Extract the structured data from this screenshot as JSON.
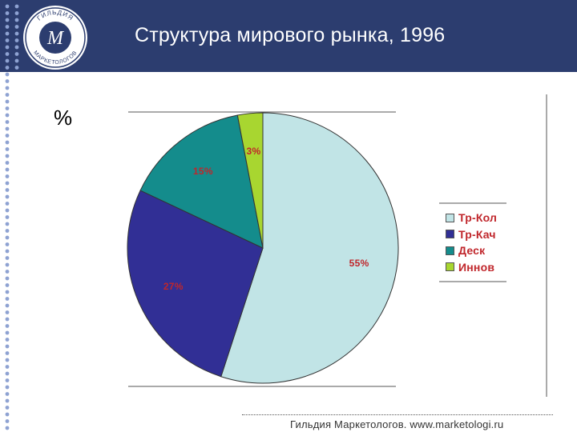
{
  "header": {
    "title": "Структура мирового рынка, 1996",
    "logo_top_text": "ГИЛЬДИЯ",
    "logo_bottom_text": "МАРКЕТОЛОГОВ",
    "logo_monogram": "M",
    "band_color": "#2c3d6f"
  },
  "unit_label": "%",
  "footer": {
    "text": "Гильдия Маркетологов. www.marketologi.ru"
  },
  "chart_data": {
    "type": "pie",
    "title": "",
    "slices": [
      {
        "name": "Тр-Кол",
        "value": 55,
        "label": "55%",
        "color": "#c1e4e6"
      },
      {
        "name": "Тр-Кач",
        "value": 27,
        "label": "27%",
        "color": "#312f95"
      },
      {
        "name": "Деск",
        "value": 15,
        "label": "15%",
        "color": "#148c8c"
      },
      {
        "name": "Иннов",
        "value": 3,
        "label": "3%",
        "color": "#a8d630"
      }
    ],
    "start_angle": "12 o'clock",
    "direction": "clockwise",
    "legend_position": "right",
    "label_color": "#c0262b"
  }
}
